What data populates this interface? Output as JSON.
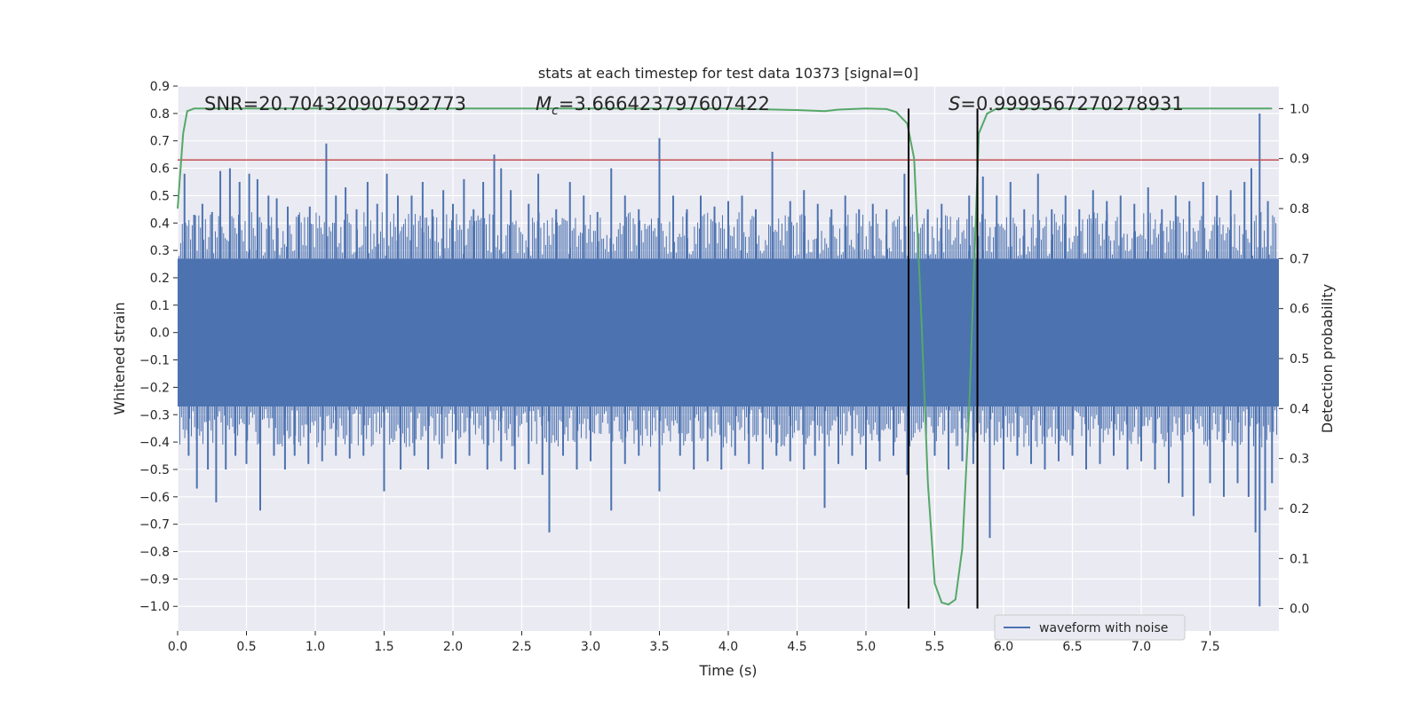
{
  "chart_data": {
    "type": "line",
    "title": "stats at each timestep for test data 10373 [signal=0]",
    "xlabel": "Time (s)",
    "ylabel": "Whitened strain",
    "y2label": "Detection probability",
    "xlim": [
      0.0,
      8.0
    ],
    "ylim": [
      -1.09,
      0.9
    ],
    "y2lim": [
      -0.045,
      1.045
    ],
    "xticks": [
      "0.0",
      "0.5",
      "1.0",
      "1.5",
      "2.0",
      "2.5",
      "3.0",
      "3.5",
      "4.0",
      "4.5",
      "5.0",
      "5.5",
      "6.0",
      "6.5",
      "7.0",
      "7.5"
    ],
    "xtick_values": [
      0.0,
      0.5,
      1.0,
      1.5,
      2.0,
      2.5,
      3.0,
      3.5,
      4.0,
      4.5,
      5.0,
      5.5,
      6.0,
      6.5,
      7.0,
      7.5
    ],
    "yticks": [
      "0.9",
      "0.8",
      "0.7",
      "0.6",
      "0.5",
      "0.4",
      "0.3",
      "0.2",
      "0.1",
      "0.0",
      "−0.1",
      "−0.2",
      "−0.3",
      "−0.4",
      "−0.5",
      "−0.6",
      "−0.7",
      "−0.8",
      "−0.9",
      "−1.0"
    ],
    "ytick_values": [
      0.9,
      0.8,
      0.7,
      0.6,
      0.5,
      0.4,
      0.3,
      0.2,
      0.1,
      0.0,
      -0.1,
      -0.2,
      -0.3,
      -0.4,
      -0.5,
      -0.6,
      -0.7,
      -0.8,
      -0.9,
      -1.0
    ],
    "y2ticks": [
      "1.0",
      "0.9",
      "0.8",
      "0.7",
      "0.6",
      "0.5",
      "0.4",
      "0.3",
      "0.2",
      "0.1",
      "0.0"
    ],
    "y2tick_values": [
      1.0,
      0.9,
      0.8,
      0.7,
      0.6,
      0.5,
      0.4,
      0.3,
      0.2,
      0.1,
      0.0
    ],
    "annotations": {
      "snr": "SNR=20.704320907592773",
      "mc_symbol": "M",
      "mc_sub": "c",
      "mc_value": "=3.666423797607422",
      "s_symbol": "S",
      "s_value": "=0.9999567270278931"
    },
    "legend": {
      "entries": [
        "waveform with noise"
      ],
      "position": "lower-right"
    },
    "series": [
      {
        "name": "waveform with noise",
        "axis": "left",
        "color": "#4c72b0",
        "band_upper": 0.27,
        "band_lower": -0.27,
        "spikes": [
          [
            0.05,
            0.58
          ],
          [
            0.12,
            0.43
          ],
          [
            0.18,
            0.47
          ],
          [
            0.25,
            0.44
          ],
          [
            0.31,
            0.59
          ],
          [
            0.38,
            0.6
          ],
          [
            0.45,
            0.55
          ],
          [
            0.52,
            0.58
          ],
          [
            0.58,
            0.56
          ],
          [
            0.66,
            0.5
          ],
          [
            0.72,
            0.49
          ],
          [
            0.8,
            0.46
          ],
          [
            0.88,
            0.43
          ],
          [
            0.96,
            0.46
          ],
          [
            1.08,
            0.69
          ],
          [
            1.15,
            0.5
          ],
          [
            1.22,
            0.53
          ],
          [
            1.3,
            0.45
          ],
          [
            1.38,
            0.55
          ],
          [
            1.45,
            0.47
          ],
          [
            1.52,
            0.58
          ],
          [
            1.6,
            0.5
          ],
          [
            1.7,
            0.5
          ],
          [
            1.78,
            0.55
          ],
          [
            1.85,
            0.45
          ],
          [
            1.93,
            0.52
          ],
          [
            2.0,
            0.47
          ],
          [
            2.08,
            0.56
          ],
          [
            2.15,
            0.45
          ],
          [
            2.22,
            0.55
          ],
          [
            2.3,
            0.65
          ],
          [
            2.35,
            0.6
          ],
          [
            2.42,
            0.52
          ],
          [
            2.55,
            0.47
          ],
          [
            2.62,
            0.58
          ],
          [
            2.75,
            0.45
          ],
          [
            2.85,
            0.55
          ],
          [
            2.95,
            0.5
          ],
          [
            3.05,
            0.44
          ],
          [
            3.15,
            0.6
          ],
          [
            3.25,
            0.5
          ],
          [
            3.35,
            0.45
          ],
          [
            3.5,
            0.71
          ],
          [
            3.6,
            0.5
          ],
          [
            3.7,
            0.45
          ],
          [
            3.8,
            0.5
          ],
          [
            3.9,
            0.46
          ],
          [
            4.0,
            0.48
          ],
          [
            4.1,
            0.5
          ],
          [
            4.2,
            0.45
          ],
          [
            4.32,
            0.66
          ],
          [
            4.45,
            0.48
          ],
          [
            4.55,
            0.52
          ],
          [
            4.65,
            0.47
          ],
          [
            4.75,
            0.45
          ],
          [
            4.85,
            0.5
          ],
          [
            4.95,
            0.45
          ],
          [
            5.05,
            0.47
          ],
          [
            5.15,
            0.45
          ],
          [
            5.28,
            0.58
          ],
          [
            5.45,
            0.45
          ],
          [
            5.55,
            0.47
          ],
          [
            5.75,
            0.5
          ],
          [
            5.85,
            0.57
          ],
          [
            5.95,
            0.5
          ],
          [
            6.05,
            0.55
          ],
          [
            6.15,
            0.45
          ],
          [
            6.25,
            0.58
          ],
          [
            6.35,
            0.45
          ],
          [
            6.45,
            0.5
          ],
          [
            6.55,
            0.45
          ],
          [
            6.65,
            0.52
          ],
          [
            6.75,
            0.48
          ],
          [
            6.85,
            0.5
          ],
          [
            6.95,
            0.47
          ],
          [
            7.05,
            0.53
          ],
          [
            7.15,
            0.45
          ],
          [
            7.25,
            0.5
          ],
          [
            7.35,
            0.48
          ],
          [
            7.45,
            0.55
          ],
          [
            7.55,
            0.5
          ],
          [
            7.65,
            0.52
          ],
          [
            7.75,
            0.55
          ],
          [
            7.8,
            0.6
          ],
          [
            7.86,
            0.8
          ],
          [
            7.92,
            0.48
          ],
          [
            0.08,
            -0.45
          ],
          [
            0.14,
            -0.57
          ],
          [
            0.22,
            -0.5
          ],
          [
            0.28,
            -0.62
          ],
          [
            0.35,
            -0.5
          ],
          [
            0.42,
            -0.45
          ],
          [
            0.5,
            -0.48
          ],
          [
            0.6,
            -0.65
          ],
          [
            0.7,
            -0.45
          ],
          [
            0.78,
            -0.5
          ],
          [
            0.85,
            -0.45
          ],
          [
            0.95,
            -0.48
          ],
          [
            1.05,
            -0.47
          ],
          [
            1.15,
            -0.45
          ],
          [
            1.25,
            -0.46
          ],
          [
            1.35,
            -0.45
          ],
          [
            1.5,
            -0.58
          ],
          [
            1.62,
            -0.5
          ],
          [
            1.72,
            -0.45
          ],
          [
            1.82,
            -0.5
          ],
          [
            1.92,
            -0.46
          ],
          [
            2.02,
            -0.48
          ],
          [
            2.12,
            -0.45
          ],
          [
            2.25,
            -0.5
          ],
          [
            2.35,
            -0.47
          ],
          [
            2.45,
            -0.5
          ],
          [
            2.55,
            -0.48
          ],
          [
            2.65,
            -0.52
          ],
          [
            2.7,
            -0.73
          ],
          [
            2.8,
            -0.45
          ],
          [
            2.9,
            -0.5
          ],
          [
            3.0,
            -0.47
          ],
          [
            3.15,
            -0.65
          ],
          [
            3.25,
            -0.48
          ],
          [
            3.35,
            -0.45
          ],
          [
            3.5,
            -0.58
          ],
          [
            3.65,
            -0.45
          ],
          [
            3.75,
            -0.5
          ],
          [
            3.85,
            -0.47
          ],
          [
            3.95,
            -0.5
          ],
          [
            4.05,
            -0.45
          ],
          [
            4.15,
            -0.48
          ],
          [
            4.25,
            -0.5
          ],
          [
            4.35,
            -0.45
          ],
          [
            4.45,
            -0.47
          ],
          [
            4.55,
            -0.5
          ],
          [
            4.63,
            -0.45
          ],
          [
            4.7,
            -0.64
          ],
          [
            4.8,
            -0.48
          ],
          [
            4.9,
            -0.45
          ],
          [
            5.0,
            -0.5
          ],
          [
            5.1,
            -0.47
          ],
          [
            5.2,
            -0.45
          ],
          [
            5.3,
            -0.52
          ],
          [
            5.5,
            -0.45
          ],
          [
            5.6,
            -0.5
          ],
          [
            5.7,
            -0.47
          ],
          [
            5.78,
            -0.48
          ],
          [
            5.9,
            -0.75
          ],
          [
            6.0,
            -0.5
          ],
          [
            6.1,
            -0.45
          ],
          [
            6.2,
            -0.48
          ],
          [
            6.3,
            -0.5
          ],
          [
            6.4,
            -0.47
          ],
          [
            6.5,
            -0.45
          ],
          [
            6.6,
            -0.5
          ],
          [
            6.7,
            -0.48
          ],
          [
            6.8,
            -0.45
          ],
          [
            6.9,
            -0.5
          ],
          [
            7.0,
            -0.47
          ],
          [
            7.1,
            -0.5
          ],
          [
            7.2,
            -0.55
          ],
          [
            7.3,
            -0.6
          ],
          [
            7.38,
            -0.67
          ],
          [
            7.5,
            -0.55
          ],
          [
            7.6,
            -0.6
          ],
          [
            7.7,
            -0.55
          ],
          [
            7.78,
            -0.6
          ],
          [
            7.83,
            -0.73
          ],
          [
            7.86,
            -1.0
          ],
          [
            7.9,
            -0.65
          ],
          [
            7.95,
            -0.55
          ]
        ]
      },
      {
        "name": "detection probability",
        "axis": "right",
        "color": "#55a868",
        "x": [
          0.0,
          0.04,
          0.07,
          0.12,
          0.5,
          1.0,
          2.0,
          3.0,
          4.0,
          4.5,
          4.7,
          4.8,
          5.0,
          5.15,
          5.22,
          5.3,
          5.35,
          5.4,
          5.45,
          5.5,
          5.55,
          5.6,
          5.65,
          5.7,
          5.75,
          5.82,
          5.88,
          5.95,
          6.0,
          6.5,
          7.0,
          7.5,
          7.95
        ],
        "values": [
          0.8,
          0.95,
          0.995,
          1.0,
          1.0,
          1.0,
          1.0,
          1.0,
          1.0,
          0.997,
          0.995,
          0.998,
          1.0,
          0.999,
          0.993,
          0.97,
          0.9,
          0.6,
          0.25,
          0.05,
          0.012,
          0.008,
          0.018,
          0.12,
          0.4,
          0.95,
          0.99,
          1.0,
          1.0,
          1.0,
          1.0,
          1.0,
          1.0
        ]
      }
    ],
    "threshold": {
      "axis": "left",
      "value": 0.63,
      "color": "#c44e52"
    },
    "vlines": [
      {
        "x": 5.31,
        "color": "#000000"
      },
      {
        "x": 5.81,
        "color": "#000000"
      }
    ]
  }
}
